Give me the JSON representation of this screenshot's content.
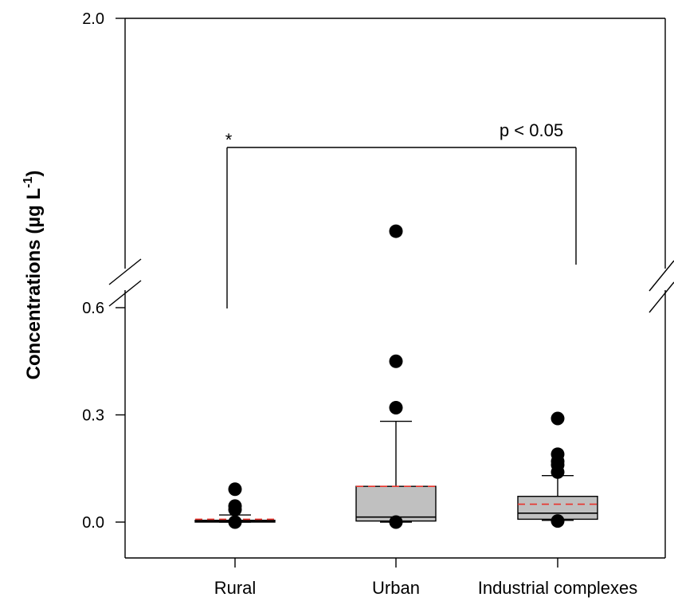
{
  "chart_data": {
    "type": "box",
    "ylabel_main": "Concentrations (µg L",
    "ylabel_sup": "-1",
    "ylabel_close": ")",
    "yticks": [
      "2.0",
      "0.6",
      "0.3",
      "0.0"
    ],
    "ytick_values": [
      2.0,
      0.6,
      0.3,
      0.0
    ],
    "y_axis_break": [
      0.6,
      2.0
    ],
    "categories": [
      "Rural",
      "Urban",
      "Industrial complexes"
    ],
    "boxes": [
      {
        "category": "Rural",
        "whisker_low": 0.0,
        "q1": 0.0,
        "median": 0.003,
        "q3": 0.005,
        "whisker_high": 0.02,
        "mean": 0.008,
        "outliers": [
          0.092,
          0.045,
          0.035,
          0.0
        ]
      },
      {
        "category": "Urban",
        "whisker_low": 0.0,
        "q1": 0.003,
        "median": 0.014,
        "q3": 0.1,
        "whisker_high": 0.282,
        "mean": 0.1,
        "outliers": [
          0.97,
          0.45,
          0.32,
          0.0
        ]
      },
      {
        "category": "Industrial complexes",
        "whisker_low": 0.005,
        "q1": 0.008,
        "median": 0.025,
        "q3": 0.072,
        "whisker_high": 0.13,
        "mean": 0.05,
        "outliers": [
          0.29,
          0.19,
          0.17,
          0.16,
          0.14,
          0.003
        ]
      }
    ],
    "annotation": {
      "star": "*",
      "text": "p < 0.05",
      "from": "Rural",
      "to": "Industrial complexes"
    },
    "colors": {
      "box_fill": "#c0c0c0",
      "mean_line": "#e8322b",
      "points": "#000000"
    }
  }
}
